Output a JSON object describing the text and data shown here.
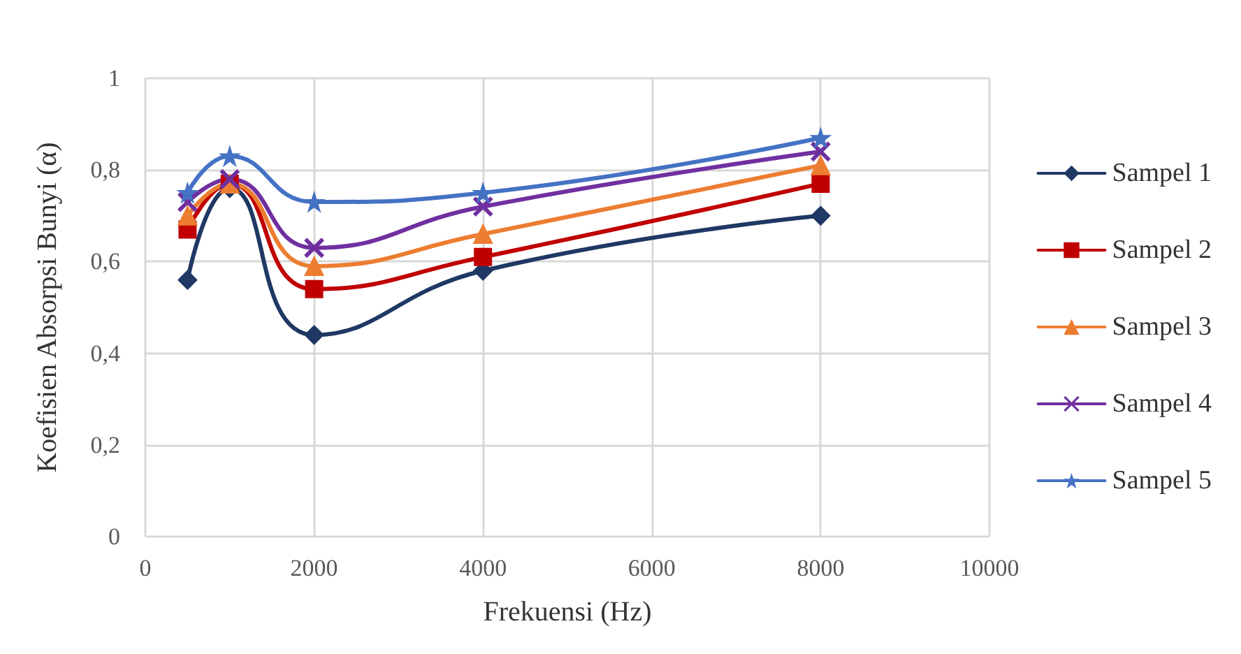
{
  "chart_data": {
    "type": "line",
    "xlabel": "Frekuensi (Hz)",
    "ylabel": "Koefisien Absorpsi Bunyi (α)",
    "x": [
      500,
      1000,
      2000,
      4000,
      8000
    ],
    "series": [
      {
        "name": "Sampel 1",
        "color": "#1f3864",
        "marker": "diamond",
        "values": [
          0.56,
          0.76,
          0.44,
          0.58,
          0.7
        ]
      },
      {
        "name": "Sampel 2",
        "color": "#c00000",
        "marker": "square",
        "values": [
          0.67,
          0.77,
          0.54,
          0.61,
          0.77
        ]
      },
      {
        "name": "Sampel 3",
        "color": "#ed7d31",
        "marker": "triangle",
        "values": [
          0.7,
          0.77,
          0.59,
          0.66,
          0.81
        ]
      },
      {
        "name": "Sampel 4",
        "color": "#7030a0",
        "marker": "cross",
        "values": [
          0.73,
          0.78,
          0.63,
          0.72,
          0.84
        ]
      },
      {
        "name": "Sampel 5",
        "color": "#4472c4",
        "marker": "star",
        "values": [
          0.75,
          0.83,
          0.73,
          0.75,
          0.87
        ]
      }
    ],
    "xlim": [
      0,
      10000
    ],
    "xticks": [
      0,
      2000,
      4000,
      6000,
      8000,
      10000
    ],
    "ylim": [
      0,
      1
    ],
    "yticks": [
      0,
      {
        "value": 0.2,
        "label": "0,2"
      },
      {
        "value": 0.4,
        "label": "0,4"
      },
      {
        "value": 0.6,
        "label": "0,6"
      },
      {
        "value": 0.8,
        "label": "0,8"
      },
      1
    ],
    "grid": true,
    "legend": "right",
    "line_style": "solid"
  }
}
